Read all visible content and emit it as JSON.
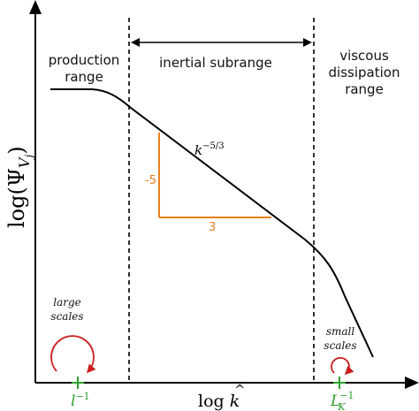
{
  "colors": {
    "axis": "#000000",
    "curve": "#000000",
    "slope_triangle": "#e8801a",
    "tick_marks": "#2ca02c",
    "rotation_arrows": "#cc1f1f"
  },
  "y_axis_label": {
    "main": "log(Ψ",
    "subscript": "V",
    "sub_subscript": "j",
    "close": ")"
  },
  "x_axis_label": {
    "prefix": "log",
    "symbol": "k",
    "hat": "^"
  },
  "regions": {
    "production": {
      "line1": "production",
      "line2": "range"
    },
    "inertial": {
      "label": "inertial subrange"
    },
    "viscous": {
      "line1": "viscous",
      "line2": "dissipation",
      "line3": "range"
    }
  },
  "slope_label": {
    "base": "k",
    "exponent": "−5/3"
  },
  "slope_triangle": {
    "rise_label": "-5",
    "run_label": "3"
  },
  "ticks": {
    "left": {
      "base": "l",
      "exponent": "−1"
    },
    "right": {
      "base": "L",
      "subscript": "K",
      "exponent": "−1"
    }
  },
  "scale_annotations": {
    "large": {
      "line1": "large",
      "line2": "scales",
      "icon": "clockwise-arrow-icon"
    },
    "small": {
      "line1": "small",
      "line2": "scales",
      "icon": "clockwise-arrow-icon"
    }
  }
}
